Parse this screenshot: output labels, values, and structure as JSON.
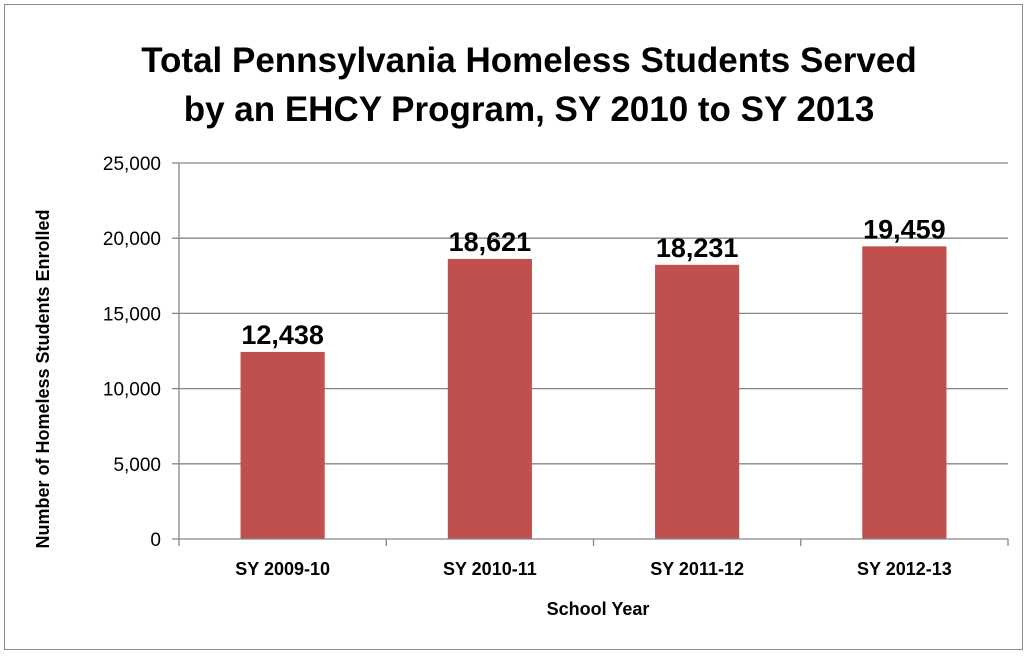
{
  "chart_data": {
    "type": "bar",
    "title_lines": [
      "Total Pennsylvania Homeless Students Served",
      "by an EHCY Program, SY 2010 to SY 2013"
    ],
    "xlabel": "School Year",
    "ylabel": "Number of Homeless Students Enrolled",
    "categories": [
      "SY 2009-10",
      "SY 2010-11",
      "SY 2011-12",
      "SY 2012-13"
    ],
    "values": [
      12438,
      18621,
      18231,
      19459
    ],
    "data_labels": [
      "12,438",
      "18,621",
      "18,231",
      "19,459"
    ],
    "yticks": [
      0,
      5000,
      10000,
      15000,
      20000,
      25000
    ],
    "ytick_labels": [
      "0",
      "5,000",
      "10,000",
      "15,000",
      "20,000",
      "25,000"
    ],
    "ylim": [
      0,
      25000
    ],
    "grid": true,
    "legend": "none",
    "bar_color": "#C0504D",
    "gridline_color": "#868686"
  }
}
